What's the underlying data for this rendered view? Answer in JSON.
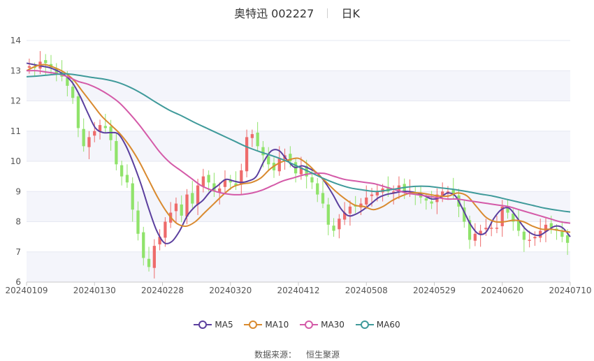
{
  "header": {
    "name": "奥特迅",
    "code": "002227",
    "period": "日K"
  },
  "legend": [
    {
      "label": "MA5",
      "color": "#5b3f9e"
    },
    {
      "label": "MA10",
      "color": "#d98a2f"
    },
    {
      "label": "MA30",
      "color": "#d45aa8"
    },
    {
      "label": "MA60",
      "color": "#3f9a9a"
    }
  ],
  "source": {
    "label": "数据来源：",
    "provider": "恒生聚源"
  },
  "chart_data": {
    "type": "candlestick",
    "x_ticks": [
      "20240109",
      "20240130",
      "20240228",
      "20240320",
      "20240412",
      "20240508",
      "20240529",
      "20240620",
      "20240710"
    ],
    "y_ticks": [
      6,
      7,
      8,
      9,
      10,
      11,
      12,
      13,
      14
    ],
    "ylim": [
      6,
      14
    ],
    "grid": true,
    "colors": {
      "up": "#ee6b6b",
      "down": "#90e36b"
    },
    "candles_close": [
      13.15,
      13.1,
      13.3,
      13.25,
      13.1,
      12.9,
      12.8,
      12.5,
      12.1,
      11.1,
      10.5,
      10.8,
      11.0,
      11.2,
      11.1,
      10.7,
      9.9,
      9.5,
      9.3,
      8.4,
      7.6,
      6.8,
      6.5,
      7.2,
      7.5,
      8.0,
      8.3,
      8.6,
      8.2,
      8.9,
      8.6,
      9.2,
      9.5,
      9.3,
      9.0,
      9.1,
      9.4,
      9.3,
      9.2,
      9.7,
      10.8,
      10.9,
      10.5,
      10.2,
      9.9,
      9.7,
      10.1,
      10.2,
      10.0,
      9.6,
      9.8,
      9.5,
      9.3,
      8.9,
      8.6,
      7.9,
      7.7,
      8.1,
      8.3,
      8.5,
      8.5,
      8.6,
      8.8,
      8.9,
      9.0,
      9.1,
      9.0,
      9.0,
      9.2,
      9.0,
      9.0,
      8.9,
      8.8,
      8.7,
      8.6,
      8.9,
      9.0,
      9.0,
      8.9,
      8.5,
      8.0,
      7.4,
      7.6,
      7.7,
      7.8,
      7.8,
      7.8,
      8.5,
      8.3,
      8.0,
      7.7,
      7.4,
      7.4,
      7.5,
      7.7,
      7.9,
      7.8,
      7.7,
      7.5,
      7.3
    ],
    "ma": {
      "MA5": [
        13.25,
        13.2,
        13.15,
        13.1,
        13.0,
        12.85,
        12.6,
        12.15,
        11.6,
        11.1,
        10.95,
        10.95,
        10.9,
        10.5,
        9.9,
        9.2,
        8.4,
        7.7,
        7.3,
        7.35,
        7.7,
        8.2,
        8.5,
        8.7,
        9.0,
        9.2,
        9.4,
        9.35,
        9.3,
        9.35,
        9.5,
        10.0,
        10.35,
        10.35,
        10.05,
        9.8,
        9.85,
        9.75,
        9.6,
        9.3,
        8.9,
        8.45,
        8.2,
        8.25,
        8.4,
        8.6,
        8.8,
        8.9,
        8.95,
        9.0,
        9.0,
        8.95,
        8.85,
        8.75,
        8.8,
        8.95,
        8.85,
        8.4,
        7.9,
        7.6,
        7.65,
        8.1,
        8.4,
        8.45,
        8.15,
        7.8,
        7.6,
        7.55,
        7.7,
        7.85,
        7.8,
        7.5
      ],
      "MA10": [
        13.0,
        13.15,
        13.2,
        13.1,
        12.95,
        12.7,
        12.3,
        11.9,
        11.5,
        11.2,
        10.9,
        10.5,
        10.0,
        9.4,
        8.8,
        8.3,
        7.95,
        7.85,
        8.0,
        8.3,
        8.6,
        8.9,
        9.15,
        9.25,
        9.3,
        9.45,
        9.75,
        9.95,
        10.05,
        10.1,
        9.9,
        9.6,
        9.3,
        9.0,
        8.75,
        8.55,
        8.5,
        8.4,
        8.5,
        8.7,
        8.85,
        8.95,
        8.95,
        8.9,
        8.85,
        8.85,
        8.95,
        8.85,
        8.5,
        8.15,
        8.0,
        8.0,
        8.05,
        8.0,
        7.85,
        7.75,
        7.75,
        7.7,
        7.65
      ],
      "MA30": [
        13.0,
        13.0,
        12.95,
        12.9,
        12.8,
        12.65,
        12.55,
        12.4,
        12.2,
        11.95,
        11.6,
        11.2,
        10.75,
        10.3,
        9.95,
        9.7,
        9.45,
        9.2,
        9.05,
        8.95,
        8.9,
        8.9,
        8.95,
        9.05,
        9.2,
        9.35,
        9.45,
        9.55,
        9.6,
        9.6,
        9.5,
        9.4,
        9.35,
        9.3,
        9.25,
        9.15,
        9.05,
        8.95,
        8.9,
        8.85,
        8.8,
        8.75,
        8.75,
        8.7,
        8.65,
        8.6,
        8.55,
        8.5,
        8.4,
        8.3,
        8.2,
        8.1,
        8.0,
        7.95
      ],
      "MA60": [
        12.8,
        12.83,
        12.87,
        12.9,
        12.85,
        12.78,
        12.72,
        12.62,
        12.45,
        12.22,
        11.95,
        11.7,
        11.5,
        11.28,
        11.08,
        10.88,
        10.68,
        10.48,
        10.32,
        10.18,
        10.02,
        9.82,
        9.62,
        9.42,
        9.25,
        9.12,
        9.05,
        9.0,
        9.05,
        9.12,
        9.17,
        9.17,
        9.12,
        9.07,
        9.0,
        8.92,
        8.85,
        8.75,
        8.65,
        8.55,
        8.45,
        8.38,
        8.32
      ]
    }
  }
}
